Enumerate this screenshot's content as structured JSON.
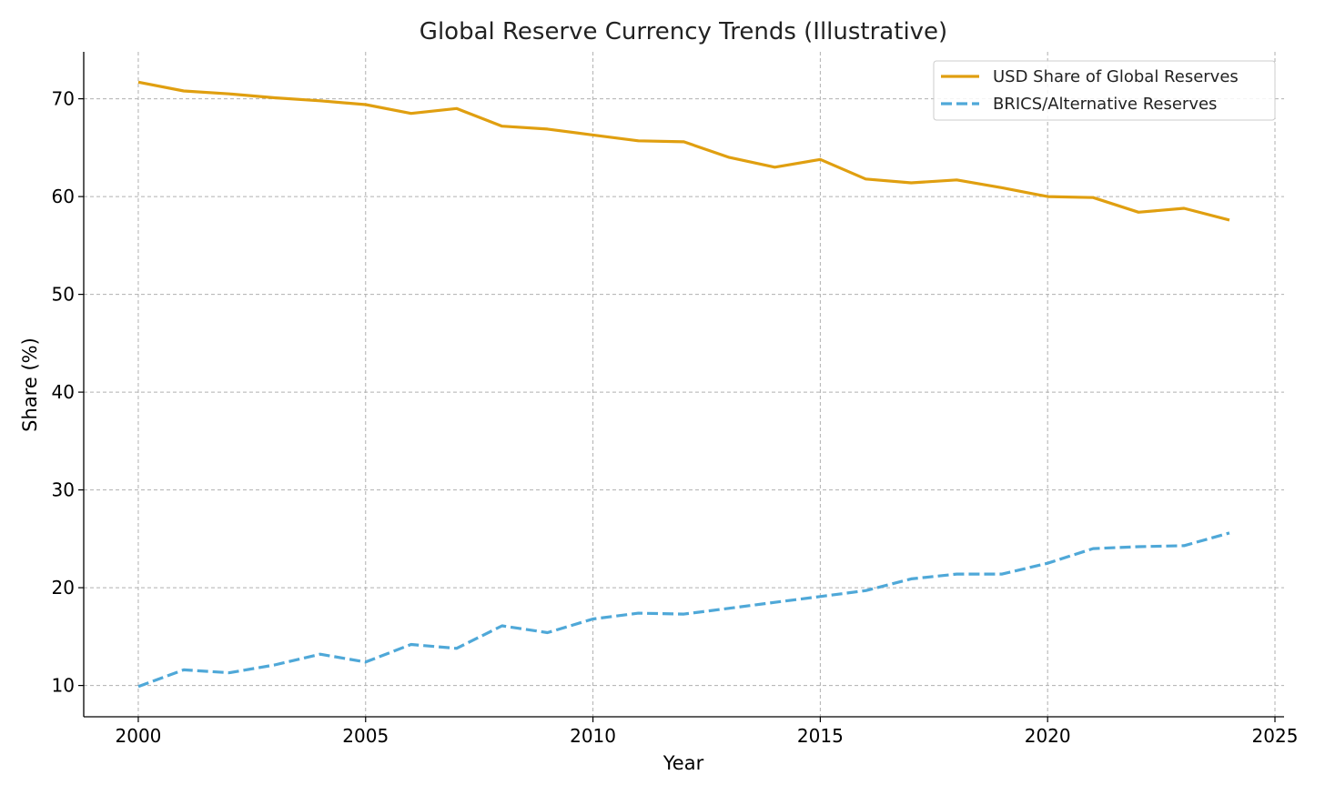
{
  "chart_data": {
    "type": "line",
    "title": "Global Reserve Currency Trends (Illustrative)",
    "xlabel": "Year",
    "ylabel": "Share (%)",
    "xlim": [
      1998.8,
      2025.2
    ],
    "ylim": [
      6.8,
      74.8
    ],
    "x_ticks": [
      2000,
      2005,
      2010,
      2015,
      2020,
      2025
    ],
    "y_ticks": [
      10,
      20,
      30,
      40,
      50,
      60,
      70
    ],
    "grid": true,
    "legend_position": "top-right",
    "x": [
      2000,
      2001,
      2002,
      2003,
      2004,
      2005,
      2006,
      2007,
      2008,
      2009,
      2010,
      2011,
      2012,
      2013,
      2014,
      2015,
      2016,
      2017,
      2018,
      2019,
      2020,
      2021,
      2022,
      2023,
      2024
    ],
    "series": [
      {
        "name": "USD Share of Global Reserves",
        "color": "#e09f10",
        "style": "solid",
        "values": [
          71.7,
          70.8,
          70.5,
          70.1,
          69.8,
          69.4,
          68.5,
          69.0,
          67.2,
          66.9,
          66.3,
          65.7,
          65.6,
          64.0,
          63.0,
          63.8,
          61.8,
          61.4,
          61.7,
          60.9,
          60.0,
          59.9,
          58.4,
          58.8,
          57.6
        ]
      },
      {
        "name": "BRICS/Alternative Reserves",
        "color": "#4fa8d8",
        "style": "dashed",
        "values": [
          9.9,
          11.6,
          11.3,
          12.1,
          13.2,
          12.4,
          14.2,
          13.8,
          16.1,
          15.4,
          16.8,
          17.4,
          17.3,
          17.9,
          18.5,
          19.1,
          19.7,
          20.9,
          21.4,
          21.4,
          22.5,
          24.0,
          24.2,
          24.3,
          25.6
        ]
      }
    ]
  }
}
